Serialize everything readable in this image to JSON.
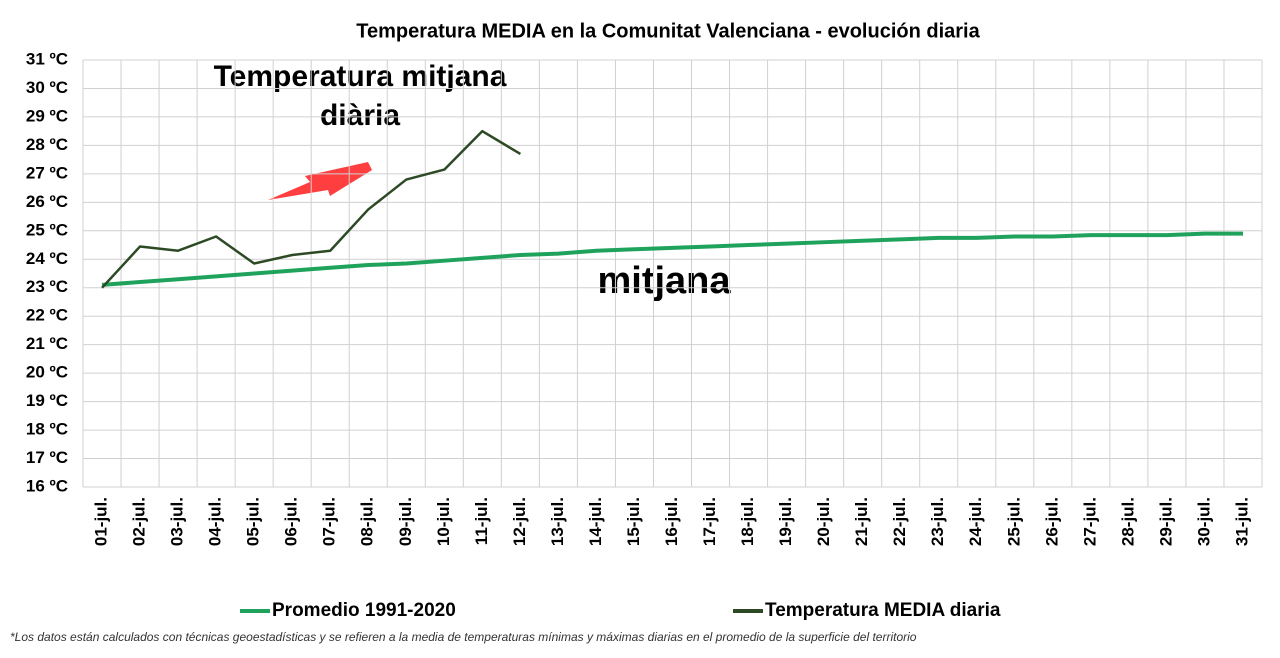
{
  "chart_data": {
    "type": "line",
    "title": "Temperatura MEDIA en la Comunitat Valenciana - evolución diaria",
    "categories": [
      "01-jul.",
      "02-jul.",
      "03-jul.",
      "04-jul.",
      "05-jul.",
      "06-jul.",
      "07-jul.",
      "08-jul.",
      "09-jul.",
      "10-jul.",
      "11-jul.",
      "12-jul.",
      "13-jul.",
      "14-jul.",
      "15-jul.",
      "16-jul.",
      "17-jul.",
      "18-jul.",
      "19-jul.",
      "20-jul.",
      "21-jul.",
      "22-jul.",
      "23-jul.",
      "24-jul.",
      "25-jul.",
      "26-jul.",
      "27-jul.",
      "28-jul.",
      "29-jul.",
      "30-jul.",
      "31-jul."
    ],
    "series": [
      {
        "name": "Promedio 1991-2020",
        "color": "#1fa35c",
        "values": [
          23.1,
          23.2,
          23.3,
          23.4,
          23.5,
          23.6,
          23.7,
          23.8,
          23.85,
          23.95,
          24.05,
          24.15,
          24.2,
          24.3,
          24.35,
          24.4,
          24.45,
          24.5,
          24.55,
          24.6,
          24.65,
          24.7,
          24.75,
          24.75,
          24.8,
          24.8,
          24.85,
          24.85,
          24.85,
          24.9,
          24.9
        ]
      },
      {
        "name": "Temperatura MEDIA diaria",
        "color": "#2d4a25",
        "values": [
          23.0,
          24.45,
          24.3,
          24.8,
          23.85,
          24.15,
          24.3,
          25.75,
          26.8,
          27.15,
          28.5,
          27.7,
          null,
          null,
          null,
          null,
          null,
          null,
          null,
          null,
          null,
          null,
          null,
          null,
          null,
          null,
          null,
          null,
          null,
          null,
          null
        ]
      }
    ],
    "ylim": [
      16,
      31
    ],
    "yticks": [
      {
        "value": 16,
        "label": "16 ºC"
      },
      {
        "value": 17,
        "label": "17 ºC"
      },
      {
        "value": 18,
        "label": "18 ºC"
      },
      {
        "value": 19,
        "label": "19 ºC"
      },
      {
        "value": 20,
        "label": "20 ºC"
      },
      {
        "value": 21,
        "label": "21 ºC"
      },
      {
        "value": 22,
        "label": "22 ºC"
      },
      {
        "value": 23,
        "label": "23 ºC"
      },
      {
        "value": 24,
        "label": "24 ºC"
      },
      {
        "value": 25,
        "label": "25 ºC"
      },
      {
        "value": 26,
        "label": "26 ºC"
      },
      {
        "value": 27,
        "label": "27 ºC"
      },
      {
        "value": 28,
        "label": "28 ºC"
      },
      {
        "value": 29,
        "label": "29 ºC"
      },
      {
        "value": 30,
        "label": "30 ºC"
      },
      {
        "value": 31,
        "label": "31 ºC"
      }
    ],
    "grid": true,
    "annotations": [
      "Temperatura mitjana",
      "diària",
      "mitjana"
    ],
    "note": "*Los datos están calculados con técnicas geoestadísticas y se refieren a la media de temperaturas mínimas y máximas diarias en el promedio de la superficie del territorio"
  }
}
